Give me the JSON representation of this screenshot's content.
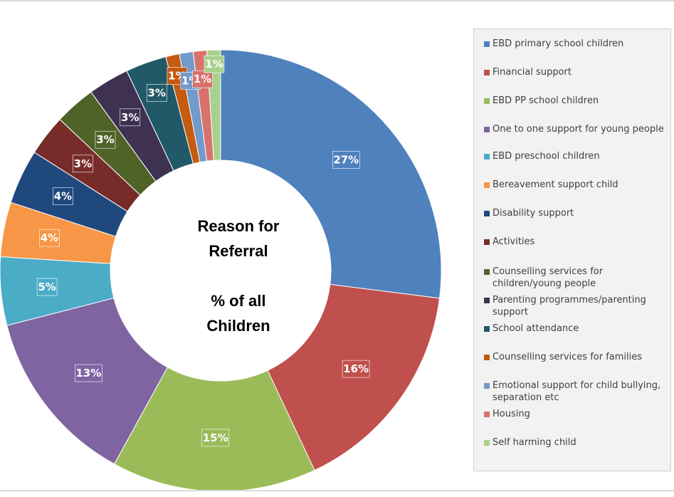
{
  "chart_data": {
    "type": "pie",
    "variant": "donut",
    "center_title_lines": [
      "Reason for",
      "Referral",
      "",
      "% of all",
      "Children"
    ],
    "legend_position": "right",
    "slices": [
      {
        "label": "EBD primary school children",
        "value": 27,
        "display": "27%",
        "color": "#4f81bd"
      },
      {
        "label": "Financial support",
        "value": 16,
        "display": "16%",
        "color": "#c0504d"
      },
      {
        "label": "EBD PP school children",
        "value": 15,
        "display": "15%",
        "color": "#9bbb59"
      },
      {
        "label": "One to one support for young people",
        "value": 13,
        "display": "13%",
        "color": "#8064a2"
      },
      {
        "label": "EBD preschool children",
        "value": 5,
        "display": "5%",
        "color": "#4bacc6"
      },
      {
        "label": "Bereavement support child",
        "value": 4,
        "display": "4%",
        "color": "#f79646"
      },
      {
        "label": "Disability support",
        "value": 4,
        "display": "4%",
        "color": "#1f497d"
      },
      {
        "label": "Activities",
        "value": 3,
        "display": "3%",
        "color": "#772c2a"
      },
      {
        "label": "Counselling services for children/young people",
        "value": 3,
        "display": "3%",
        "color": "#4f6228"
      },
      {
        "label": "Parenting programmes/parenting support",
        "value": 3,
        "display": "3%",
        "color": "#3f3151"
      },
      {
        "label": "School attendance",
        "value": 3,
        "display": "3%",
        "color": "#215968"
      },
      {
        "label": "Counselling services for families",
        "value": 1,
        "display": "1%",
        "color": "#c55a11"
      },
      {
        "label": "Emotional support for child bullying, separation etc",
        "value": 1,
        "display": "1%",
        "color": "#729aca"
      },
      {
        "label": "Housing",
        "value": 1,
        "display": "1%",
        "color": "#d9716c"
      },
      {
        "label": "Self harming child",
        "value": 1,
        "display": "1%",
        "color": "#a9d18e"
      }
    ]
  }
}
